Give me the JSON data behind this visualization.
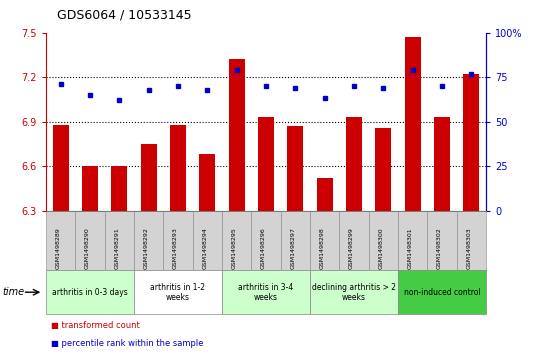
{
  "title": "GDS6064 / 10533145",
  "samples": [
    "GSM1498289",
    "GSM1498290",
    "GSM1498291",
    "GSM1498292",
    "GSM1498293",
    "GSM1498294",
    "GSM1498295",
    "GSM1498296",
    "GSM1498297",
    "GSM1498298",
    "GSM1498299",
    "GSM1498300",
    "GSM1498301",
    "GSM1498302",
    "GSM1498303"
  ],
  "bar_values": [
    6.88,
    6.6,
    6.6,
    6.75,
    6.88,
    6.68,
    7.32,
    6.93,
    6.87,
    6.52,
    6.93,
    6.86,
    7.47,
    6.93,
    7.22
  ],
  "dot_values": [
    71,
    65,
    62,
    68,
    70,
    68,
    79,
    70,
    69,
    63,
    70,
    69,
    79,
    70,
    77
  ],
  "bar_color": "#cc0000",
  "dot_color": "#0000cc",
  "ylim_left": [
    6.3,
    7.5
  ],
  "ylim_right": [
    0,
    100
  ],
  "yticks_left": [
    6.3,
    6.6,
    6.9,
    7.2,
    7.5
  ],
  "yticks_right": [
    0,
    25,
    50,
    75,
    100
  ],
  "ytick_labels_left": [
    "6.3",
    "6.6",
    "6.9",
    "7.2",
    "7.5"
  ],
  "ytick_labels_right": [
    "0",
    "25",
    "50",
    "75",
    "100%"
  ],
  "hlines": [
    6.6,
    6.9,
    7.2
  ],
  "groups": [
    {
      "label": "arthritis in 0-3 days",
      "start": 0,
      "end": 3,
      "color": "#ccffcc"
    },
    {
      "label": "arthritis in 1-2\nweeks",
      "start": 3,
      "end": 6,
      "color": "#ffffff"
    },
    {
      "label": "arthritis in 3-4\nweeks",
      "start": 6,
      "end": 9,
      "color": "#ccffcc"
    },
    {
      "label": "declining arthritis > 2\nweeks",
      "start": 9,
      "end": 12,
      "color": "#ccffcc"
    },
    {
      "label": "non-induced control",
      "start": 12,
      "end": 15,
      "color": "#44cc44"
    }
  ],
  "legend_bar_label": "transformed count",
  "legend_dot_label": "percentile rank within the sample",
  "time_label": "time",
  "sample_bg_color": "#d3d3d3",
  "plot_bg_color": "#ffffff"
}
